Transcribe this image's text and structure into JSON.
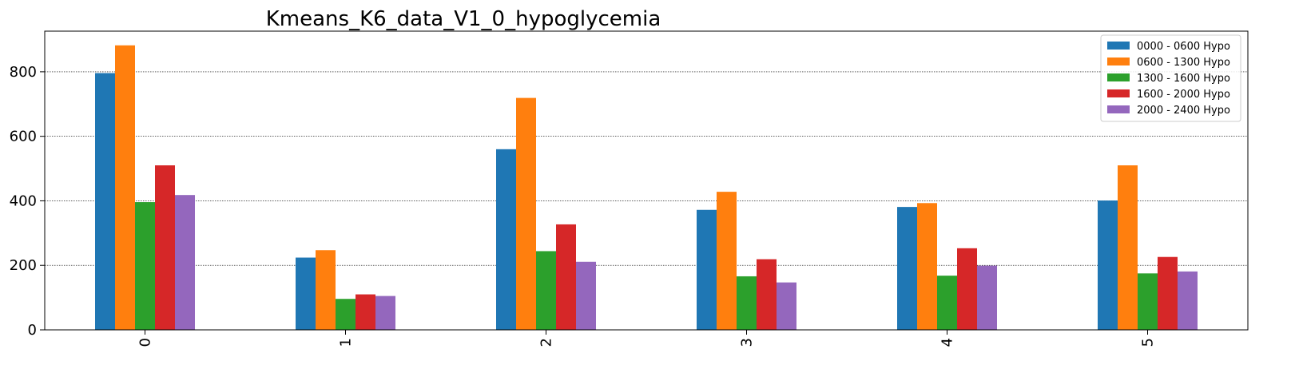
{
  "chart_data": {
    "type": "bar",
    "title": "Kmeans_K6_data_V1_0_hypoglycemia",
    "xlabel": "",
    "ylabel": "",
    "categories": [
      "0",
      "1",
      "2",
      "3",
      "4",
      "5"
    ],
    "series": [
      {
        "name": "0000 - 0600 Hypo",
        "color": "#1f77b4",
        "values": [
          796,
          224,
          560,
          372,
          381,
          401
        ]
      },
      {
        "name": "0600 - 1300 Hypo",
        "color": "#ff7f0e",
        "values": [
          882,
          247,
          719,
          428,
          393,
          510
        ]
      },
      {
        "name": "1300 - 1600 Hypo",
        "color": "#2ca02c",
        "values": [
          396,
          96,
          244,
          166,
          168,
          175
        ]
      },
      {
        "name": "1600 - 2000 Hypo",
        "color": "#d62728",
        "values": [
          510,
          110,
          327,
          219,
          253,
          226
        ]
      },
      {
        "name": "2000 - 2400 Hypo",
        "color": "#9467bd",
        "values": [
          418,
          105,
          211,
          147,
          199,
          181
        ]
      }
    ],
    "ylim": [
      0,
      926
    ],
    "yticks": [
      0,
      200,
      400,
      600,
      800
    ],
    "grid": "y-dotted",
    "legend_position": "top-right"
  }
}
